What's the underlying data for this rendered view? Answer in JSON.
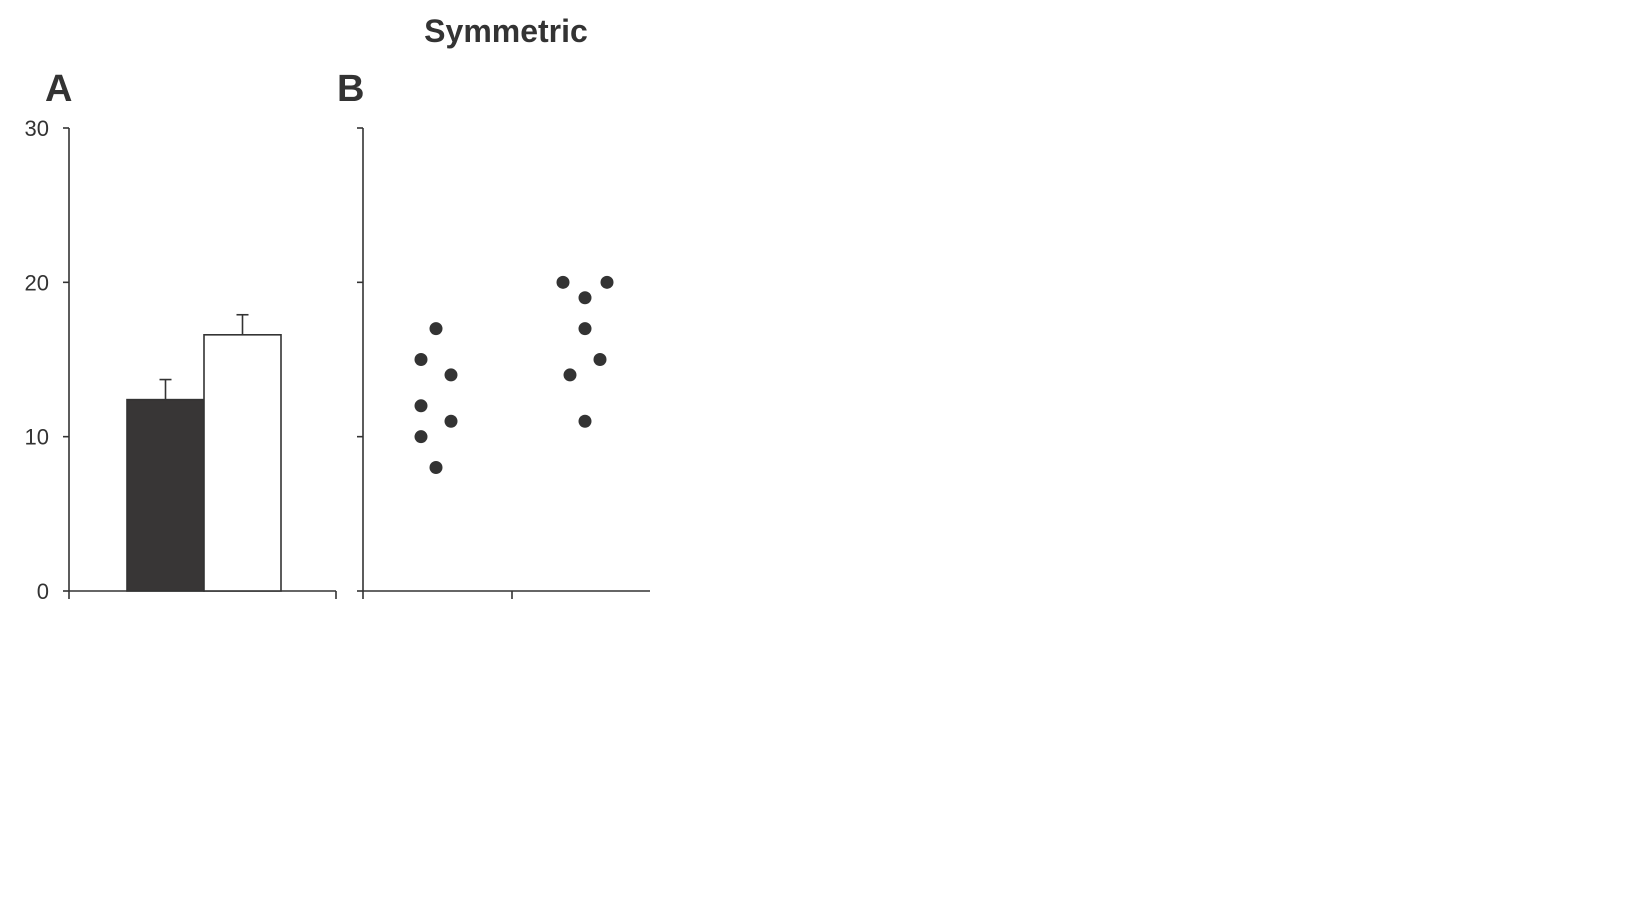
{
  "figure": {
    "title": "Symmetric"
  },
  "colors": {
    "ink": "#333333",
    "bar_filled": "#383636",
    "bar_open": "#ffffff",
    "background": "#ffffff"
  },
  "chart_data": [
    {
      "type": "bar",
      "panel_label": "A",
      "categories": [
        "",
        ""
      ],
      "values": [
        12.4,
        16.6
      ],
      "error": [
        1.3,
        1.3
      ],
      "bar_fills": [
        "#383636",
        "#ffffff"
      ],
      "ylim": [
        0,
        30
      ],
      "yticks": [
        0,
        10,
        20,
        30
      ],
      "ytick_labels": [
        "0",
        "10",
        "20",
        "30"
      ],
      "xlabel": "",
      "ylabel": "",
      "grid": false,
      "legend": "none"
    },
    {
      "type": "scatter",
      "panel_label": "B",
      "categories": [
        "",
        ""
      ],
      "series": [
        {
          "points": [
            {
              "x": 1,
              "y": 17
            },
            {
              "x": 1,
              "y": 15
            },
            {
              "x": 1,
              "y": 14
            },
            {
              "x": 1,
              "y": 12
            },
            {
              "x": 1,
              "y": 11
            },
            {
              "x": 1,
              "y": 10
            },
            {
              "x": 1,
              "y": 8
            }
          ]
        },
        {
          "points": [
            {
              "x": 2,
              "y": 20
            },
            {
              "x": 2,
              "y": 20
            },
            {
              "x": 2,
              "y": 19
            },
            {
              "x": 2,
              "y": 17
            },
            {
              "x": 2,
              "y": 15
            },
            {
              "x": 2,
              "y": 14
            },
            {
              "x": 2,
              "y": 11
            }
          ]
        }
      ],
      "ylim": [
        0,
        30
      ],
      "yticks": [
        0,
        10,
        20,
        30
      ],
      "xlabel": "",
      "ylabel": "",
      "grid": false,
      "legend": "none"
    }
  ]
}
